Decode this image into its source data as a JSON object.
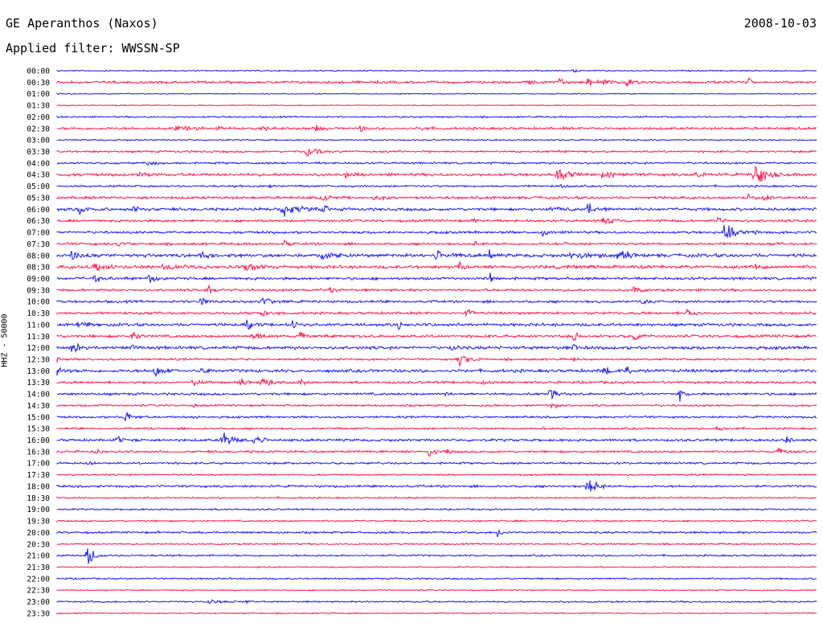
{
  "header": {
    "station": "GE Aperanthos (Naxos)",
    "date": "2008-10-03",
    "filter_label": "Applied filter: WWSSN-SP"
  },
  "chart_data": {
    "type": "line",
    "title": "GE Aperanthos (Naxos)",
    "ylabel": "HHZ - 50000",
    "xlabel": "",
    "grid": false,
    "colors": [
      "#1a1aff",
      "#ff1a4b"
    ],
    "row_labels": [
      "00:00",
      "00:30",
      "01:00",
      "01:30",
      "02:00",
      "02:30",
      "03:00",
      "03:30",
      "04:00",
      "04:30",
      "05:00",
      "05:30",
      "06:00",
      "06:30",
      "07:00",
      "07:30",
      "08:00",
      "08:30",
      "09:00",
      "09:30",
      "10:00",
      "10:30",
      "11:00",
      "11:30",
      "12:00",
      "12:30",
      "13:00",
      "13:30",
      "14:00",
      "14:30",
      "15:00",
      "15:30",
      "16:00",
      "16:30",
      "17:00",
      "17:30",
      "18:00",
      "18:30",
      "19:00",
      "19:30",
      "20:00",
      "20:30",
      "21:00",
      "21:30",
      "22:00",
      "22:30",
      "23:00",
      "23:30"
    ],
    "noise_levels": [
      0.6,
      1.2,
      0.5,
      0.5,
      0.8,
      1.2,
      0.7,
      1.0,
      1.0,
      1.4,
      1.0,
      1.3,
      1.4,
      1.2,
      1.2,
      1.2,
      1.6,
      1.6,
      1.3,
      1.2,
      1.2,
      1.2,
      1.4,
      1.3,
      1.5,
      1.0,
      1.5,
      1.2,
      1.2,
      1.0,
      1.0,
      1.0,
      1.2,
      1.1,
      1.0,
      0.8,
      1.1,
      0.8,
      0.8,
      0.8,
      1.0,
      0.8,
      0.9,
      0.6,
      0.8,
      0.6,
      0.8,
      0.6
    ],
    "events": [
      [
        [
          0.68,
          0.2,
          3
        ]
      ],
      [
        [
          0.62,
          0.3,
          4
        ],
        [
          0.66,
          0.3,
          6
        ],
        [
          0.7,
          0.4,
          9
        ],
        [
          0.72,
          0.3,
          5
        ],
        [
          0.75,
          0.4,
          5
        ],
        [
          0.91,
          0.2,
          12
        ]
      ],
      [],
      [],
      [],
      [
        [
          0.16,
          0.8,
          5
        ],
        [
          0.21,
          0.3,
          4
        ],
        [
          0.27,
          0.4,
          4
        ],
        [
          0.34,
          0.3,
          5
        ],
        [
          0.4,
          0.3,
          4
        ],
        [
          0.48,
          0.2,
          3
        ]
      ],
      [],
      [
        [
          0.33,
          0.7,
          6
        ]
      ],
      [
        [
          0.12,
          0.4,
          3
        ]
      ],
      [
        [
          0.11,
          0.3,
          4
        ],
        [
          0.38,
          0.5,
          3
        ],
        [
          0.66,
          0.8,
          6
        ],
        [
          0.72,
          0.6,
          5
        ],
        [
          0.84,
          0.4,
          4
        ],
        [
          0.92,
          0.6,
          20
        ]
      ],
      [
        [
          0.66,
          0.3,
          3
        ],
        [
          0.28,
          0.1,
          3
        ]
      ],
      [
        [
          0.35,
          0.5,
          4
        ],
        [
          0.42,
          0.6,
          3
        ],
        [
          0.91,
          0.3,
          4
        ],
        [
          0.93,
          0.3,
          5
        ]
      ],
      [
        [
          0.03,
          0.5,
          5
        ],
        [
          0.1,
          0.4,
          4
        ],
        [
          0.3,
          0.8,
          9
        ],
        [
          0.35,
          0.4,
          5
        ],
        [
          0.65,
          0.5,
          4
        ],
        [
          0.7,
          0.5,
          8
        ]
      ],
      [
        [
          0.55,
          0.2,
          4
        ],
        [
          0.72,
          0.5,
          5
        ],
        [
          0.87,
          0.3,
          5
        ]
      ],
      [
        [
          0.64,
          0.3,
          5
        ],
        [
          0.88,
          0.5,
          14
        ],
        [
          0.92,
          0.2,
          4
        ]
      ],
      [
        [
          0.08,
          0.3,
          5
        ],
        [
          0.3,
          0.3,
          4
        ],
        [
          0.55,
          0.2,
          3
        ],
        [
          0.67,
          0.2,
          4
        ]
      ],
      [
        [
          0.02,
          0.5,
          5
        ],
        [
          0.19,
          0.4,
          4
        ],
        [
          0.35,
          0.6,
          9
        ],
        [
          0.5,
          0.6,
          5
        ],
        [
          0.57,
          0.2,
          18
        ],
        [
          0.68,
          0.8,
          7
        ],
        [
          0.74,
          0.5,
          11
        ]
      ],
      [
        [
          0.05,
          0.6,
          5
        ],
        [
          0.14,
          0.6,
          4
        ],
        [
          0.25,
          0.8,
          5
        ],
        [
          0.53,
          0.3,
          5
        ],
        [
          0.92,
          0.3,
          8
        ]
      ],
      [
        [
          0.05,
          0.6,
          4
        ],
        [
          0.12,
          0.6,
          6
        ],
        [
          0.57,
          0.1,
          8
        ]
      ],
      [
        [
          0.2,
          0.5,
          5
        ],
        [
          0.36,
          0.4,
          4
        ],
        [
          0.76,
          0.3,
          7
        ]
      ],
      [
        [
          0.19,
          0.6,
          5
        ],
        [
          0.27,
          0.6,
          6
        ],
        [
          0.77,
          0.4,
          4
        ]
      ],
      [
        [
          0.27,
          0.6,
          6
        ],
        [
          0.54,
          0.4,
          5
        ],
        [
          0.83,
          0.4,
          4
        ]
      ],
      [
        [
          0.03,
          0.5,
          4
        ],
        [
          0.25,
          0.4,
          7
        ],
        [
          0.31,
          0.3,
          5
        ],
        [
          0.45,
          0.3,
          4
        ],
        [
          0.54,
          0.2,
          3
        ]
      ],
      [
        [
          0.1,
          0.4,
          6
        ],
        [
          0.26,
          0.6,
          4
        ],
        [
          0.32,
          0.3,
          7
        ],
        [
          0.68,
          0.2,
          10
        ],
        [
          0.76,
          0.4,
          6
        ]
      ],
      [
        [
          0.02,
          0.4,
          9
        ],
        [
          0.1,
          0.3,
          4
        ],
        [
          0.52,
          0.3,
          4
        ],
        [
          0.68,
          0.3,
          4
        ]
      ],
      [
        [
          0.0,
          0.2,
          4
        ],
        [
          0.53,
          0.7,
          7
        ],
        [
          0.68,
          0.2,
          4
        ]
      ],
      [
        [
          0.0,
          0.3,
          7
        ],
        [
          0.13,
          0.5,
          7
        ],
        [
          0.19,
          0.4,
          4
        ],
        [
          0.72,
          0.4,
          5
        ],
        [
          0.75,
          0.3,
          7
        ]
      ],
      [
        [
          0.18,
          0.5,
          5
        ],
        [
          0.24,
          0.4,
          5
        ],
        [
          0.27,
          0.5,
          6
        ],
        [
          0.32,
          0.3,
          5
        ],
        [
          0.56,
          0.3,
          4
        ]
      ],
      [
        [
          0.51,
          0.2,
          4
        ],
        [
          0.65,
          0.5,
          6
        ],
        [
          0.82,
          0.3,
          7
        ]
      ],
      [
        [
          0.18,
          0.1,
          3
        ],
        [
          0.65,
          0.4,
          5
        ]
      ],
      [
        [
          0.09,
          0.4,
          8
        ],
        [
          0.18,
          0.2,
          4
        ]
      ],
      [
        [
          0.64,
          0.2,
          3
        ],
        [
          0.87,
          0.5,
          4
        ]
      ],
      [
        [
          0.08,
          0.6,
          4
        ],
        [
          0.22,
          0.7,
          9
        ],
        [
          0.26,
          0.5,
          5
        ],
        [
          0.96,
          0.3,
          4
        ]
      ],
      [
        [
          0.05,
          0.2,
          4
        ],
        [
          0.49,
          0.3,
          8
        ],
        [
          0.51,
          0.3,
          6
        ],
        [
          0.95,
          0.4,
          5
        ]
      ],
      [
        [
          0.04,
          0.3,
          3
        ]
      ],
      [],
      [
        [
          0.7,
          0.6,
          11
        ]
      ],
      [],
      [],
      [],
      [
        [
          0.58,
          0.3,
          5
        ]
      ],
      [],
      [
        [
          0.04,
          0.4,
          14
        ]
      ],
      [],
      [],
      [],
      [
        [
          0.2,
          0.6,
          3
        ],
        [
          0.25,
          0.2,
          4
        ]
      ],
      []
    ]
  }
}
